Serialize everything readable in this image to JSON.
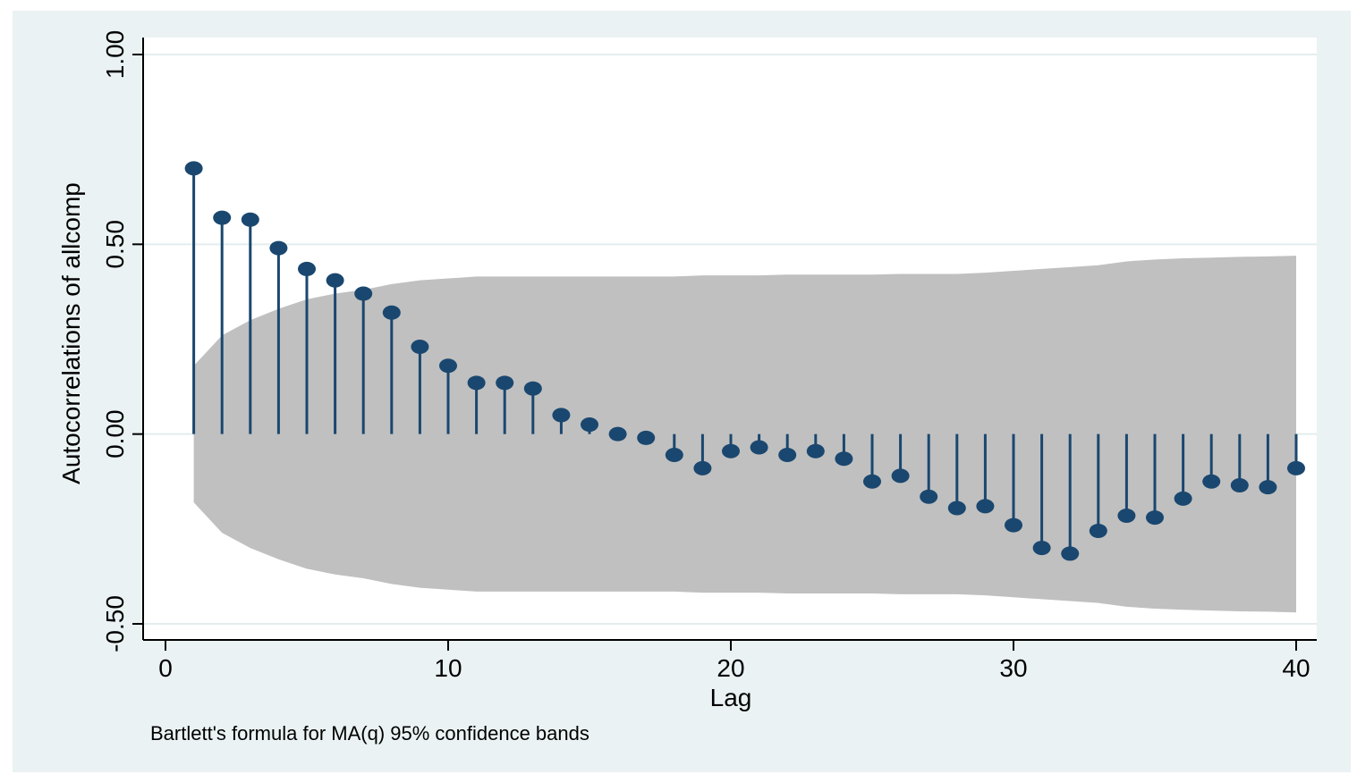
{
  "chart_data": {
    "type": "bar",
    "subtype": "stem-autocorrelation",
    "xlabel": "Lag",
    "ylabel": "Autocorrelations of allcomp",
    "note": "Bartlett's formula for MA(q) 95% confidence bands",
    "xlim": [
      0,
      40
    ],
    "ylim": [
      -0.5,
      1.0
    ],
    "xticks": [
      0,
      10,
      20,
      30,
      40
    ],
    "xtick_labels": [
      "0",
      "10",
      "20",
      "30",
      "40"
    ],
    "yticks": [
      -0.5,
      0,
      0.5,
      1.0
    ],
    "ytick_labels": [
      "-0.50",
      "0.00",
      "0.50",
      "1.00"
    ],
    "grid": true,
    "colors": {
      "background": "#eaf2f3",
      "plot": "#ffffff",
      "band": "#c0c0c0",
      "stem": "#1a476f",
      "grid": "#eaf2f3"
    },
    "lags": [
      1,
      2,
      3,
      4,
      5,
      6,
      7,
      8,
      9,
      10,
      11,
      12,
      13,
      14,
      15,
      16,
      17,
      18,
      19,
      20,
      21,
      22,
      23,
      24,
      25,
      26,
      27,
      28,
      29,
      30,
      31,
      32,
      33,
      34,
      35,
      36,
      37,
      38,
      39,
      40
    ],
    "values": [
      0.7,
      0.57,
      0.565,
      0.49,
      0.435,
      0.405,
      0.37,
      0.32,
      0.23,
      0.18,
      0.135,
      0.135,
      0.12,
      0.05,
      0.025,
      0.0,
      -0.01,
      -0.055,
      -0.09,
      -0.045,
      -0.035,
      -0.055,
      -0.045,
      -0.065,
      -0.125,
      -0.11,
      -0.165,
      -0.195,
      -0.19,
      -0.24,
      -0.3,
      -0.315,
      -0.255,
      -0.215,
      -0.22,
      -0.17,
      -0.125,
      -0.135,
      -0.14,
      -0.09
    ],
    "confidence_band": [
      0.18,
      0.26,
      0.3,
      0.33,
      0.355,
      0.37,
      0.38,
      0.395,
      0.405,
      0.41,
      0.415,
      0.415,
      0.415,
      0.415,
      0.415,
      0.415,
      0.415,
      0.415,
      0.418,
      0.418,
      0.418,
      0.42,
      0.42,
      0.42,
      0.42,
      0.422,
      0.422,
      0.422,
      0.425,
      0.43,
      0.435,
      0.44,
      0.445,
      0.455,
      0.46,
      0.463,
      0.465,
      0.467,
      0.468,
      0.47
    ]
  }
}
